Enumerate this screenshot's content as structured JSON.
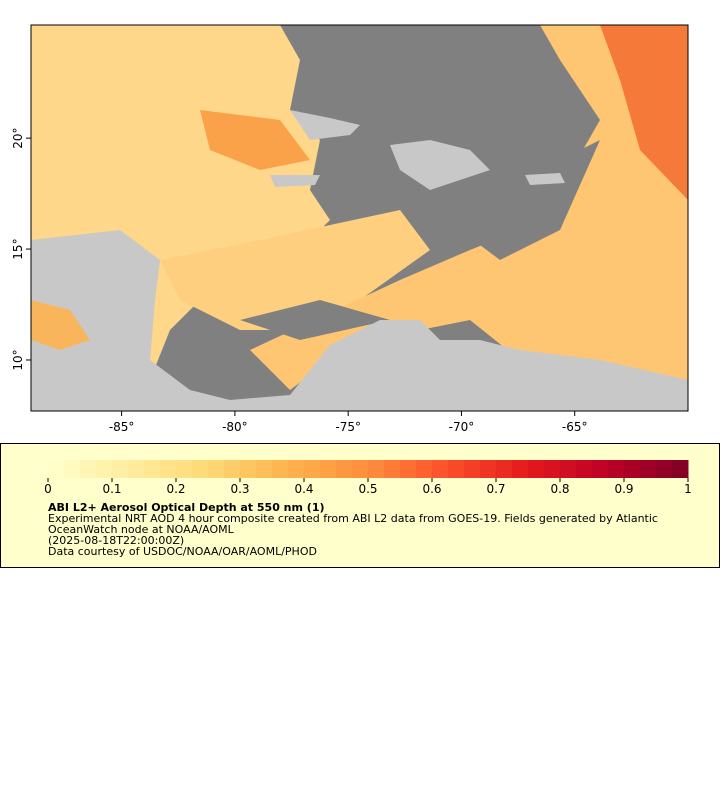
{
  "chart_data": {
    "type": "map",
    "xlim": [
      -89,
      -60
    ],
    "ylim": [
      7.7,
      25.1
    ],
    "xticks": [
      {
        "value": -85,
        "label": "-85°"
      },
      {
        "value": -80,
        "label": "-80°"
      },
      {
        "value": -75,
        "label": "-75°"
      },
      {
        "value": -70,
        "label": "-70°"
      },
      {
        "value": -65,
        "label": "-65°"
      }
    ],
    "yticks": [
      {
        "value": 10,
        "label": "10°"
      },
      {
        "value": 15,
        "label": "15°"
      },
      {
        "value": 20,
        "label": "20°"
      }
    ],
    "colorbar": {
      "lim": [
        0,
        1
      ],
      "ticks": [
        0,
        0.1,
        0.2,
        0.3,
        0.4,
        0.5,
        0.6,
        0.7,
        0.8,
        0.9,
        1
      ],
      "colors": [
        "#ffffcc",
        "#ffeda0",
        "#fed976",
        "#feb24c",
        "#fd8d3c",
        "#fc4e2a",
        "#e31a1c",
        "#bd0026",
        "#800026"
      ]
    },
    "legend": {
      "title": "ABI L2+ Aerosol Optical Depth at 550 nm (1)",
      "lines": [
        "Experimental NRT AOD 4 hour composite created from ABI L2 data from GOES-19. Fields generated by Atlantic",
        "OceanWatch node at NOAA/AOML",
        "(2025-08-18T22:00:00Z)",
        "Data courtesy of USDOC/NOAA/OAR/AOML/PHOD"
      ]
    }
  }
}
